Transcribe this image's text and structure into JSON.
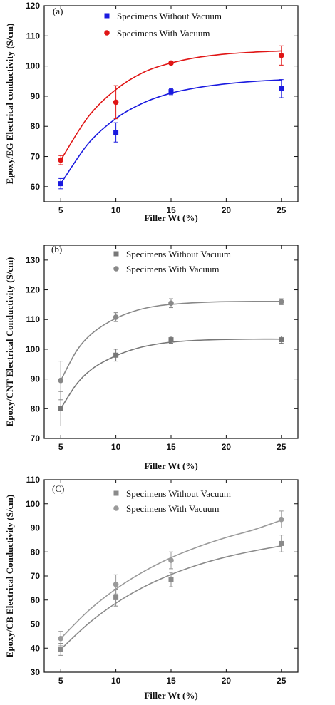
{
  "chart_data": [
    {
      "type": "scatter",
      "panel_label": "(a)",
      "xlabel": "Filler Wt (%)",
      "ylabel": "Epoxy/EG Electrical conductivity (S/cm)",
      "xlim": [
        3.5,
        26.5
      ],
      "ylim": [
        55,
        120
      ],
      "xticks": [
        5,
        10,
        15,
        20,
        25
      ],
      "yticks": [
        60,
        70,
        80,
        90,
        100,
        110,
        120
      ],
      "legend_position": "top-right",
      "series": [
        {
          "name": "Specimens Without Vacuum",
          "marker": "square",
          "color": "#1a1adf",
          "x": [
            5,
            10,
            15,
            25
          ],
          "y": [
            61,
            78,
            91.5,
            92.5
          ],
          "err": [
            1.7,
            3.2,
            1.0,
            3.0
          ],
          "fit_x": [
            5,
            7.5,
            10,
            12.5,
            15,
            17.5,
            20,
            22.5,
            25
          ],
          "fit_y": [
            61.0,
            74.3,
            82.6,
            87.8,
            91.0,
            92.9,
            94.1,
            94.9,
            95.4
          ]
        },
        {
          "name": "Specimens With Vacuum",
          "marker": "circle",
          "color": "#e01515",
          "x": [
            5,
            10,
            15,
            25
          ],
          "y": [
            68.8,
            88,
            101,
            103.5
          ],
          "err": [
            1.5,
            5.5,
            0.5,
            3.2
          ],
          "fit_x": [
            5,
            7.5,
            10,
            12.5,
            15,
            17.5,
            20,
            22.5,
            25
          ],
          "fit_y": [
            68.8,
            83.2,
            92.2,
            97.9,
            101.0,
            102.9,
            104.0,
            104.6,
            105.0
          ]
        }
      ]
    },
    {
      "type": "scatter",
      "panel_label": "(b)",
      "xlabel": "Filler Wt (%)",
      "ylabel": "Epoxy/CNT Electrical Conductivity (S/cm)",
      "xlim": [
        3.5,
        26.5
      ],
      "ylim": [
        70,
        135
      ],
      "xticks": [
        5,
        10,
        15,
        20,
        25
      ],
      "yticks": [
        70,
        80,
        90,
        100,
        110,
        120,
        130
      ],
      "legend_position": "top-right",
      "series": [
        {
          "name": "Specimens Without Vacuum",
          "marker": "square",
          "color": "#777777",
          "x": [
            5,
            10,
            15,
            25
          ],
          "y": [
            80,
            98,
            103.2,
            103.2
          ],
          "err": [
            5.8,
            2.0,
            1.2,
            1.2
          ],
          "fit_x": [
            5,
            6.5,
            8,
            10,
            12,
            14,
            16,
            18,
            20,
            22.5,
            25
          ],
          "fit_y": [
            80.0,
            88.6,
            93.8,
            97.8,
            100.4,
            101.9,
            102.7,
            103.1,
            103.3,
            103.4,
            103.4
          ]
        },
        {
          "name": "Specimens With Vacuum",
          "marker": "circle",
          "color": "#888888",
          "x": [
            5,
            10,
            15,
            25
          ],
          "y": [
            89.5,
            110.8,
            115.5,
            116
          ],
          "err": [
            6.5,
            1.5,
            1.5,
            1.0
          ],
          "fit_x": [
            5,
            6.5,
            8,
            10,
            12,
            14,
            16,
            18,
            20,
            22.5,
            25
          ],
          "fit_y": [
            89.5,
            99.8,
            105.8,
            110.4,
            113.2,
            114.7,
            115.4,
            115.8,
            116.0,
            116.1,
            116.1
          ]
        }
      ]
    },
    {
      "type": "scatter",
      "panel_label": "(C)",
      "xlabel": "Filler Wt (%)",
      "ylabel": "Epoxy/CB Electrical Conductivity (S/cm)",
      "xlim": [
        3.5,
        26.5
      ],
      "ylim": [
        30,
        110
      ],
      "xticks": [
        5,
        10,
        15,
        20,
        25
      ],
      "yticks": [
        30,
        40,
        50,
        60,
        70,
        80,
        90,
        100,
        110
      ],
      "legend_position": "top-right",
      "series": [
        {
          "name": "Specimens Without Vacuum",
          "marker": "square",
          "color": "#8a8a8a",
          "x": [
            5,
            10,
            15,
            25
          ],
          "y": [
            39.5,
            61,
            68.5,
            83.5
          ],
          "err": [
            2.5,
            3.5,
            3.0,
            3.5
          ],
          "fit_x": [
            5,
            7.5,
            10,
            12.5,
            15,
            17.5,
            20,
            22.5,
            25
          ],
          "fit_y": [
            39.5,
            50.2,
            58.7,
            65.4,
            70.6,
            74.7,
            77.9,
            80.4,
            82.5
          ]
        },
        {
          "name": "Specimens With Vacuum",
          "marker": "circle",
          "color": "#9a9a9a",
          "x": [
            5,
            10,
            15,
            25
          ],
          "y": [
            44,
            66.5,
            76.5,
            93.5
          ],
          "err": [
            3.0,
            4.0,
            3.5,
            3.5
          ],
          "fit_x": [
            5,
            7.5,
            10,
            12.5,
            15,
            17.5,
            20,
            22.5,
            25
          ],
          "fit_y": [
            44.0,
            55.5,
            64.6,
            71.8,
            77.6,
            82.2,
            86.0,
            89.2,
            93.2
          ]
        }
      ]
    }
  ]
}
